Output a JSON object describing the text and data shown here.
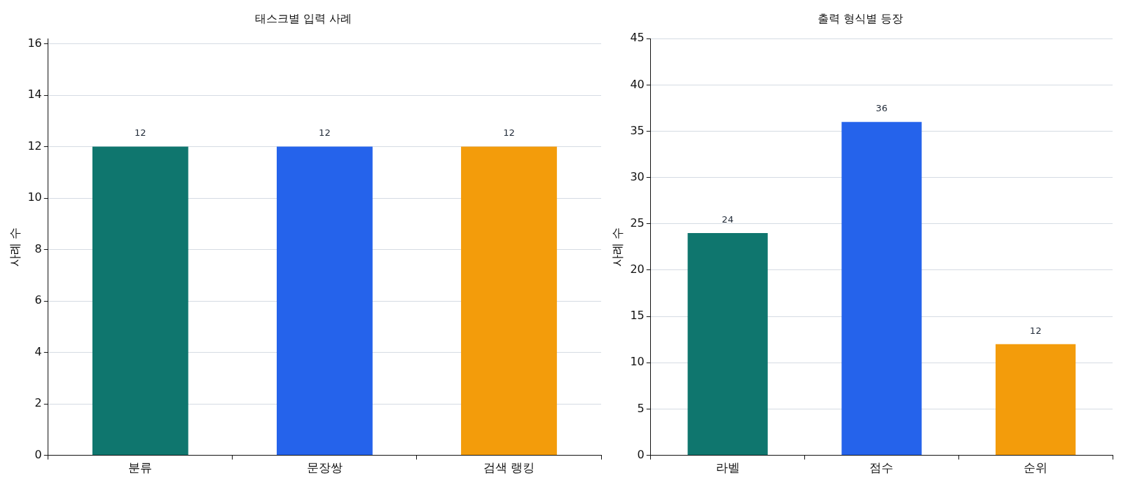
{
  "chart_data": [
    {
      "type": "bar",
      "title": "태스크별 입력 사례",
      "ylabel": "사례 수",
      "categories": [
        "분류",
        "문장쌍",
        "검색 랭킹"
      ],
      "values": [
        12,
        12,
        12
      ],
      "colors": [
        "#0f766e",
        "#2563eb",
        "#f39c0b"
      ],
      "ylim": [
        0,
        16.2
      ],
      "yticks": [
        0,
        2,
        4,
        6,
        8,
        10,
        12,
        14,
        16
      ],
      "grid": "y",
      "legend": false,
      "data_labels": true
    },
    {
      "type": "bar",
      "title": "출력 형식별 등장",
      "ylabel": "사례 수",
      "categories": [
        "라벨",
        "점수",
        "순위"
      ],
      "values": [
        24,
        36,
        12
      ],
      "colors": [
        "#0f766e",
        "#2563eb",
        "#f39c0b"
      ],
      "ylim": [
        0,
        45
      ],
      "yticks": [
        0,
        5,
        10,
        15,
        20,
        25,
        30,
        35,
        40,
        45
      ],
      "grid": "y",
      "legend": false,
      "data_labels": true
    }
  ]
}
